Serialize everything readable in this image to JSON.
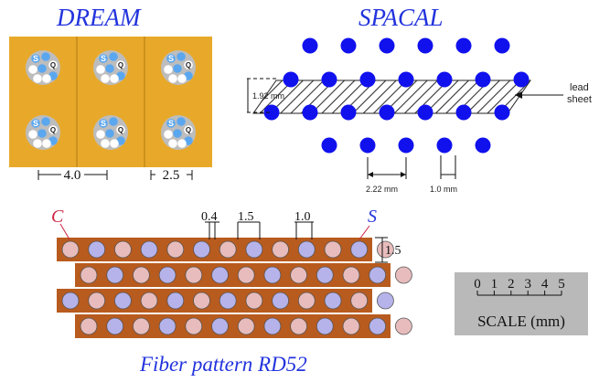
{
  "dream": {
    "title": "DREAM",
    "fiber_s": "S",
    "fiber_q": "Q",
    "dim_wide": "4.0",
    "dim_narrow": "2.5",
    "colors": {
      "plate": "#e8a92a",
      "cell": "#bdbdbd",
      "s_fiber": "#5ba7ef",
      "q_fiber": "#ffffff"
    }
  },
  "spacal": {
    "title": "SPACAL",
    "lead_label_1": "lead",
    "lead_label_2": "sheet",
    "dim_pitch_v": "1.92 mm",
    "dim_pitch_h": "2.22 mm",
    "dim_fiber": "1.0 mm",
    "colors": {
      "fiber": "#1111ee",
      "hatch": "#333333"
    }
  },
  "rd52": {
    "title": "Fiber pattern  RD52",
    "label_c": "C",
    "label_s": "S",
    "dim_04": "0.4",
    "dim_15_top": "1.5",
    "dim_10": "1.0",
    "dim_15_side": "1.5",
    "colors": {
      "plate": "#b85b1e",
      "c_fiber": "#e8bcbc",
      "s_fiber": "#b6b2ea"
    }
  },
  "scale": {
    "ticks": [
      "0",
      "1",
      "2",
      "3",
      "4",
      "5"
    ],
    "label": "SCALE (mm)",
    "colors": {
      "box": "#b9b9b9"
    }
  }
}
